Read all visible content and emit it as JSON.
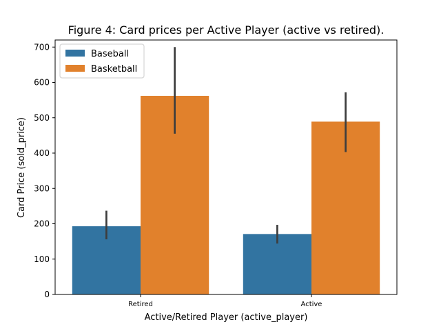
{
  "chart_data": {
    "type": "bar",
    "title": "Figure 4: Card prices per Active Player (active vs retired).",
    "xlabel": "Active/Retired Player (active_player)",
    "ylabel": "Card Price (sold_price)",
    "categories": [
      "Retired",
      "Active"
    ],
    "ylim": [
      0,
      720
    ],
    "yticks": [
      0,
      100,
      200,
      300,
      400,
      500,
      600,
      700
    ],
    "grid": false,
    "legend_position": "top-left",
    "series": [
      {
        "name": "Baseball",
        "color": "#3274a1",
        "values": [
          193,
          171
        ],
        "error_low": [
          156,
          144
        ],
        "error_high": [
          237,
          197
        ]
      },
      {
        "name": "Basketball",
        "color": "#e1812c",
        "values": [
          562,
          489
        ],
        "error_low": [
          455,
          403
        ],
        "error_high": [
          700,
          572
        ]
      }
    ],
    "errorbar_color": "#3d3d3d"
  }
}
